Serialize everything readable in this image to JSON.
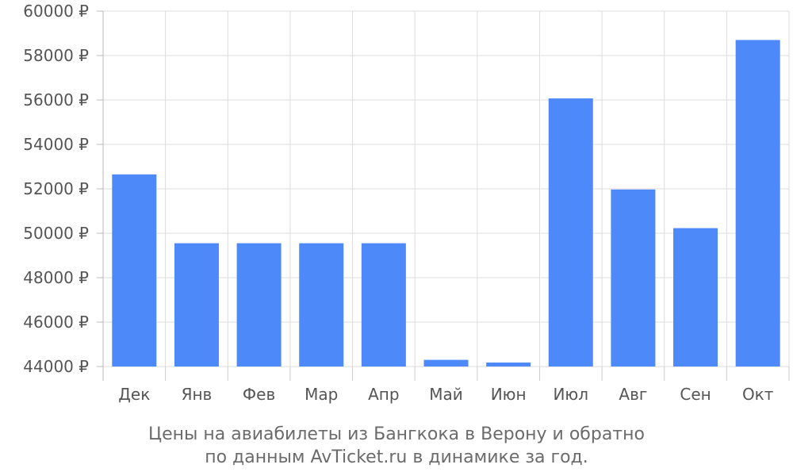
{
  "chart_data": {
    "type": "bar",
    "currency_symbol": "₽",
    "categories": [
      "Дек",
      "Янв",
      "Фев",
      "Мар",
      "Апр",
      "Май",
      "Июн",
      "Июл",
      "Авг",
      "Сен",
      "Окт"
    ],
    "values": [
      52650,
      49550,
      49550,
      49550,
      49550,
      44300,
      44180,
      56070,
      51970,
      50230,
      58700
    ],
    "ylim": [
      44000,
      60000
    ],
    "y_ticks": [
      44000,
      46000,
      48000,
      50000,
      52000,
      54000,
      56000,
      58000,
      60000
    ],
    "y_tick_labels": [
      "44000 ₽",
      "46000 ₽",
      "48000 ₽",
      "50000 ₽",
      "52000 ₽",
      "54000 ₽",
      "56000 ₽",
      "58000 ₽",
      "60000 ₽"
    ],
    "grid": true,
    "bar_color": "#4d89f9",
    "grid_color": "#dddddd"
  },
  "caption": {
    "line1": "Цены на авиабилеты из Бангкока в Верону и обратно",
    "line2": "по данным AvTicket.ru в динамике за год."
  }
}
